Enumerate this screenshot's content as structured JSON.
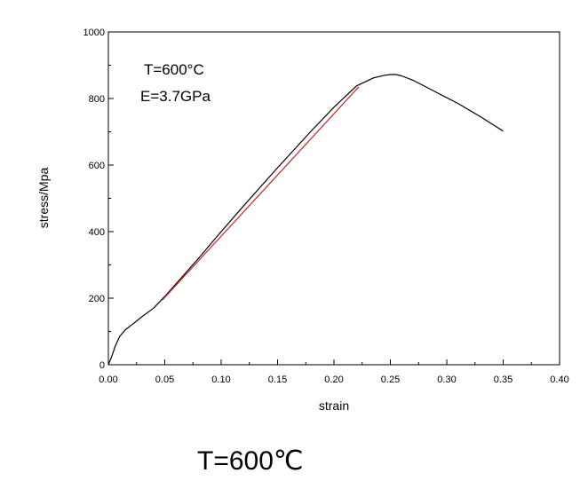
{
  "chart_data": {
    "type": "line",
    "xlabel": "strain",
    "ylabel": "stress/Mpa",
    "xlim": [
      0.0,
      0.4
    ],
    "ylim": [
      0,
      1000
    ],
    "x_ticks": [
      "0.00",
      "0.05",
      "0.10",
      "0.15",
      "0.20",
      "0.25",
      "0.30",
      "0.35",
      "0.40"
    ],
    "y_ticks": [
      "0",
      "200",
      "400",
      "600",
      "800",
      "1000"
    ],
    "annotations": [
      "T=600°C",
      "E=3.7GPa"
    ],
    "grid": false,
    "series": [
      {
        "color": "#000000",
        "x": [
          0.0,
          0.003,
          0.006,
          0.01,
          0.015,
          0.02,
          0.03,
          0.04,
          0.05,
          0.08,
          0.1,
          0.12,
          0.15,
          0.18,
          0.2,
          0.22,
          0.235,
          0.245,
          0.25,
          0.255,
          0.26,
          0.27,
          0.29,
          0.31,
          0.33,
          0.35
        ],
        "y": [
          0,
          25,
          55,
          85,
          105,
          118,
          145,
          170,
          205,
          320,
          400,
          478,
          592,
          703,
          774,
          838,
          862,
          870,
          872,
          872,
          868,
          855,
          820,
          785,
          745,
          702
        ]
      },
      {
        "color": "#cc2020",
        "x": [
          0.048,
          0.222
        ],
        "y": [
          195,
          835
        ]
      }
    ]
  },
  "caption": "T=600℃"
}
